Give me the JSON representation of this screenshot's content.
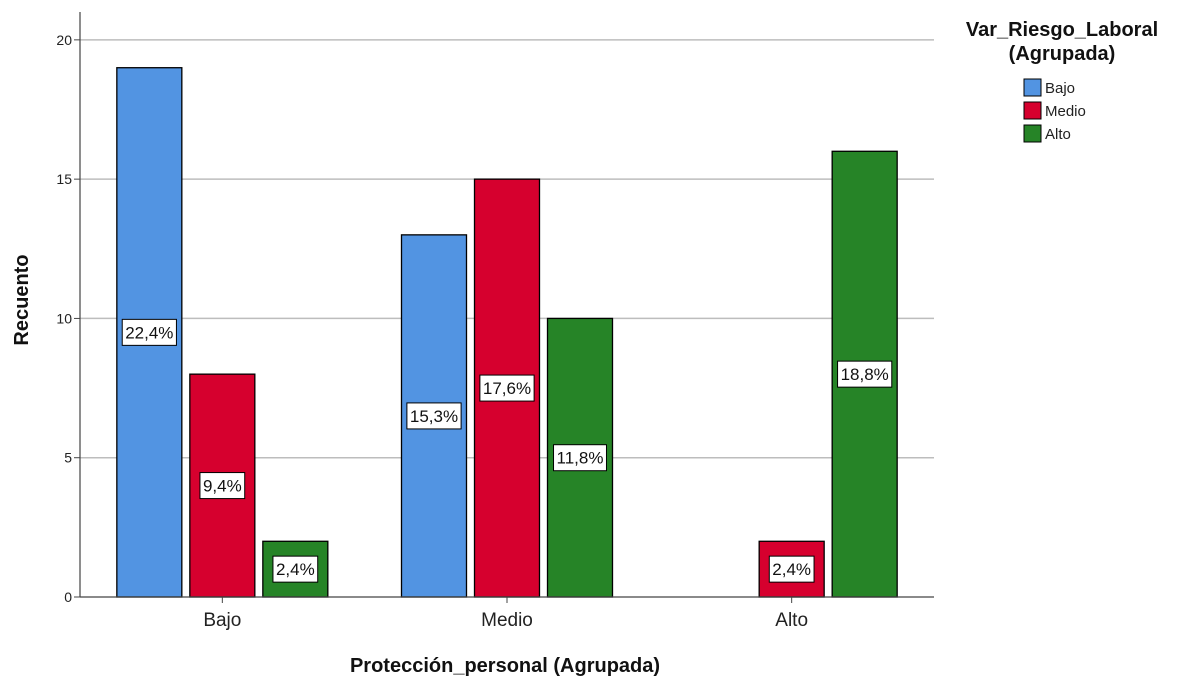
{
  "chart_data": {
    "type": "bar",
    "categories": [
      "Bajo",
      "Medio",
      "Alto"
    ],
    "series": [
      {
        "name": "Bajo",
        "color": "#5294E2",
        "values": [
          19,
          13,
          0
        ],
        "labels": [
          "22,4%",
          "15,3%",
          ""
        ]
      },
      {
        "name": "Medio",
        "color": "#D6002E",
        "values": [
          8,
          15,
          2
        ],
        "labels": [
          "9,4%",
          "17,6%",
          "2,4%"
        ]
      },
      {
        "name": "Alto",
        "color": "#268427",
        "values": [
          2,
          10,
          16
        ],
        "labels": [
          "2,4%",
          "11,8%",
          "18,8%"
        ]
      }
    ],
    "xlabel": "Protección_personal (Agrupada)",
    "ylabel": "Recuento",
    "ylim": [
      0,
      21
    ],
    "yticks": [
      "0",
      "5",
      "10",
      "15",
      "20"
    ],
    "legend_title_lines": [
      "Var_Riesgo_Laboral",
      "(Agrupada)"
    ],
    "legend_position": "top-right",
    "grid": true
  }
}
